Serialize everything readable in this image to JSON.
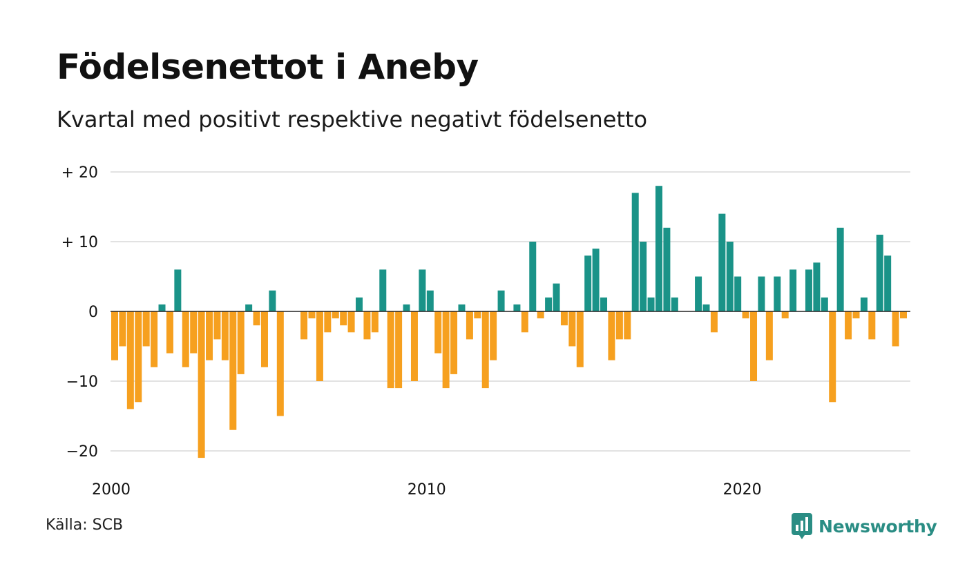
{
  "title": "Födelsenettot i Aneby",
  "subtitle": "Kvartal med positivt respektive negativt födelsenetto",
  "source": "Källa: SCB",
  "brand": {
    "name": "Newsworthy",
    "icon": "newsworthy-logo-icon"
  },
  "colors": {
    "positive": "#1a9388",
    "negative": "#f6a01f",
    "grid": "#e2e2e2",
    "zero_line": "#222222"
  },
  "chart_data": {
    "type": "bar",
    "x_unit": "quarter",
    "x_start": "2000 Q1",
    "x_ticks": [
      "2000",
      "2010",
      "2020"
    ],
    "y_ticks": [
      20,
      10,
      0,
      -10,
      -20
    ],
    "y_tick_labels": [
      "+ 20",
      "+ 10",
      "0",
      "−10",
      "−20"
    ],
    "ylim": [
      -21,
      20
    ],
    "grid": true,
    "values": [
      -7,
      -5,
      -14,
      -13,
      -5,
      -8,
      1,
      -6,
      6,
      -8,
      -6,
      -21,
      -7,
      -4,
      -7,
      -17,
      -9,
      1,
      -2,
      -8,
      3,
      -15,
      0,
      0,
      -4,
      -1,
      -10,
      -3,
      -1,
      -2,
      -3,
      2,
      -4,
      -3,
      6,
      -11,
      -11,
      1,
      -10,
      6,
      3,
      -6,
      -11,
      -9,
      1,
      -4,
      -1,
      -11,
      -7,
      3,
      0,
      1,
      -3,
      10,
      -1,
      2,
      4,
      -2,
      -5,
      -8,
      8,
      9,
      2,
      -7,
      -4,
      -4,
      17,
      10,
      2,
      18,
      12,
      2,
      0,
      0,
      5,
      1,
      -3,
      14,
      10,
      5,
      -1,
      -10,
      5,
      -7,
      5,
      -1,
      6,
      0,
      6,
      7,
      2,
      -13,
      12,
      -4,
      -1,
      2,
      -4,
      11,
      8,
      -5,
      -1
    ]
  }
}
